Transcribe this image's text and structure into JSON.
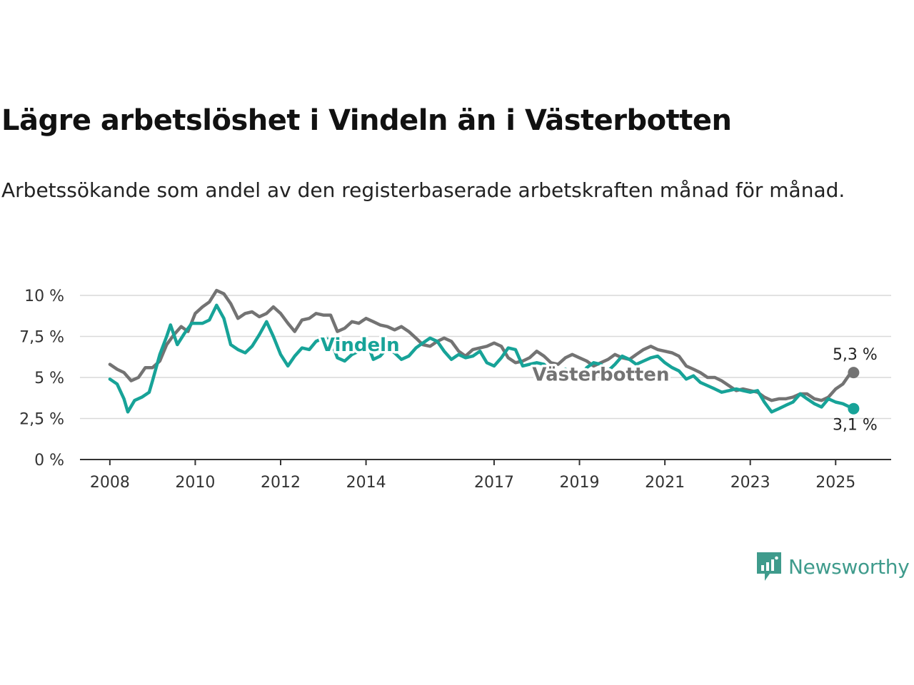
{
  "header": {
    "title": "Lägre arbetslöshet i Vindeln än i Västerbotten",
    "subtitle": "Arbetssökande som andel av den registerbaserade arbetskraften månad för månad."
  },
  "brand": {
    "name": "Newsworthy",
    "color": "#3f9b8c",
    "icon": "newsworthy-logo-icon"
  },
  "chart_data": {
    "type": "line",
    "x_unit": "year",
    "xlim": [
      2007.3,
      2026.3
    ],
    "ylim": [
      0,
      10
    ],
    "y_ticks": [
      0,
      2.5,
      5,
      7.5,
      10
    ],
    "y_tick_labels": [
      "0 %",
      "2,5 %",
      "5 %",
      "7,5 %",
      "10 %"
    ],
    "x_ticks": [
      2008,
      2010,
      2012,
      2014,
      2017,
      2019,
      2021,
      2023,
      2025
    ],
    "x_tick_labels": [
      "2008",
      "2010",
      "2012",
      "2014",
      "2017",
      "2019",
      "2021",
      "2023",
      "2025"
    ],
    "grid": true,
    "legend": "direct labels",
    "series": [
      {
        "name": "Västerbotten",
        "color": "#737373",
        "end_label": "5,3 %",
        "points": [
          [
            2008.0,
            5.8
          ],
          [
            2008.17,
            5.5
          ],
          [
            2008.33,
            5.3
          ],
          [
            2008.5,
            4.8
          ],
          [
            2008.67,
            5.0
          ],
          [
            2008.83,
            5.6
          ],
          [
            2009.0,
            5.6
          ],
          [
            2009.17,
            6.0
          ],
          [
            2009.33,
            7.0
          ],
          [
            2009.5,
            7.6
          ],
          [
            2009.67,
            8.1
          ],
          [
            2009.83,
            7.8
          ],
          [
            2010.0,
            8.9
          ],
          [
            2010.17,
            9.3
          ],
          [
            2010.33,
            9.6
          ],
          [
            2010.5,
            10.3
          ],
          [
            2010.67,
            10.1
          ],
          [
            2010.83,
            9.5
          ],
          [
            2011.0,
            8.6
          ],
          [
            2011.17,
            8.9
          ],
          [
            2011.33,
            9.0
          ],
          [
            2011.5,
            8.7
          ],
          [
            2011.67,
            8.9
          ],
          [
            2011.83,
            9.3
          ],
          [
            2012.0,
            8.9
          ],
          [
            2012.17,
            8.3
          ],
          [
            2012.33,
            7.8
          ],
          [
            2012.5,
            8.5
          ],
          [
            2012.67,
            8.6
          ],
          [
            2012.83,
            8.9
          ],
          [
            2013.0,
            8.8
          ],
          [
            2013.17,
            8.8
          ],
          [
            2013.33,
            7.8
          ],
          [
            2013.5,
            8.0
          ],
          [
            2013.67,
            8.4
          ],
          [
            2013.83,
            8.3
          ],
          [
            2014.0,
            8.6
          ],
          [
            2014.17,
            8.4
          ],
          [
            2014.33,
            8.2
          ],
          [
            2014.5,
            8.1
          ],
          [
            2014.67,
            7.9
          ],
          [
            2014.83,
            8.1
          ],
          [
            2015.0,
            7.8
          ],
          [
            2015.17,
            7.4
          ],
          [
            2015.33,
            7.0
          ],
          [
            2015.5,
            6.9
          ],
          [
            2015.67,
            7.2
          ],
          [
            2015.83,
            7.4
          ],
          [
            2016.0,
            7.2
          ],
          [
            2016.17,
            6.6
          ],
          [
            2016.33,
            6.3
          ],
          [
            2016.5,
            6.7
          ],
          [
            2016.67,
            6.8
          ],
          [
            2016.83,
            6.9
          ],
          [
            2017.0,
            7.1
          ],
          [
            2017.17,
            6.9
          ],
          [
            2017.33,
            6.2
          ],
          [
            2017.5,
            5.9
          ],
          [
            2017.67,
            6.0
          ],
          [
            2017.83,
            6.2
          ],
          [
            2018.0,
            6.6
          ],
          [
            2018.17,
            6.3
          ],
          [
            2018.33,
            5.9
          ],
          [
            2018.5,
            5.8
          ],
          [
            2018.67,
            6.2
          ],
          [
            2018.83,
            6.4
          ],
          [
            2019.0,
            6.2
          ],
          [
            2019.17,
            6.0
          ],
          [
            2019.33,
            5.7
          ],
          [
            2019.5,
            5.9
          ],
          [
            2019.67,
            6.1
          ],
          [
            2019.83,
            6.4
          ],
          [
            2020.0,
            6.2
          ],
          [
            2020.17,
            6.1
          ],
          [
            2020.33,
            6.4
          ],
          [
            2020.5,
            6.7
          ],
          [
            2020.67,
            6.9
          ],
          [
            2020.83,
            6.7
          ],
          [
            2021.0,
            6.6
          ],
          [
            2021.17,
            6.5
          ],
          [
            2021.33,
            6.3
          ],
          [
            2021.5,
            5.7
          ],
          [
            2021.67,
            5.5
          ],
          [
            2021.83,
            5.3
          ],
          [
            2022.0,
            5.0
          ],
          [
            2022.17,
            5.0
          ],
          [
            2022.33,
            4.8
          ],
          [
            2022.5,
            4.5
          ],
          [
            2022.67,
            4.2
          ],
          [
            2022.83,
            4.3
          ],
          [
            2023.0,
            4.2
          ],
          [
            2023.17,
            4.1
          ],
          [
            2023.33,
            3.8
          ],
          [
            2023.5,
            3.6
          ],
          [
            2023.67,
            3.7
          ],
          [
            2023.83,
            3.7
          ],
          [
            2024.0,
            3.8
          ],
          [
            2024.17,
            4.0
          ],
          [
            2024.33,
            4.0
          ],
          [
            2024.5,
            3.7
          ],
          [
            2024.67,
            3.6
          ],
          [
            2024.83,
            3.8
          ],
          [
            2025.0,
            4.3
          ],
          [
            2025.17,
            4.6
          ],
          [
            2025.33,
            5.2
          ],
          [
            2025.42,
            5.3
          ]
        ]
      },
      {
        "name": "Vindeln",
        "color": "#17a398",
        "end_label": "3,1 %",
        "points": [
          [
            2008.0,
            4.9
          ],
          [
            2008.17,
            4.6
          ],
          [
            2008.33,
            3.7
          ],
          [
            2008.42,
            2.9
          ],
          [
            2008.58,
            3.6
          ],
          [
            2008.75,
            3.8
          ],
          [
            2008.92,
            4.1
          ],
          [
            2009.0,
            4.8
          ],
          [
            2009.17,
            6.4
          ],
          [
            2009.33,
            7.5
          ],
          [
            2009.42,
            8.2
          ],
          [
            2009.58,
            7.0
          ],
          [
            2009.75,
            7.7
          ],
          [
            2009.92,
            8.3
          ],
          [
            2010.17,
            8.3
          ],
          [
            2010.33,
            8.5
          ],
          [
            2010.5,
            9.4
          ],
          [
            2010.67,
            8.6
          ],
          [
            2010.83,
            7.0
          ],
          [
            2011.0,
            6.7
          ],
          [
            2011.17,
            6.5
          ],
          [
            2011.33,
            6.9
          ],
          [
            2011.5,
            7.6
          ],
          [
            2011.67,
            8.4
          ],
          [
            2011.83,
            7.5
          ],
          [
            2012.0,
            6.4
          ],
          [
            2012.17,
            5.7
          ],
          [
            2012.33,
            6.3
          ],
          [
            2012.5,
            6.8
          ],
          [
            2012.67,
            6.7
          ],
          [
            2012.83,
            7.2
          ],
          [
            2013.0,
            7.4
          ],
          [
            2013.17,
            7.3
          ],
          [
            2013.33,
            6.2
          ],
          [
            2013.5,
            6.0
          ],
          [
            2013.67,
            6.4
          ],
          [
            2013.83,
            6.6
          ],
          [
            2014.0,
            7.3
          ],
          [
            2014.17,
            6.1
          ],
          [
            2014.33,
            6.3
          ],
          [
            2014.5,
            6.8
          ],
          [
            2014.67,
            6.5
          ],
          [
            2014.83,
            6.1
          ],
          [
            2015.0,
            6.3
          ],
          [
            2015.17,
            6.8
          ],
          [
            2015.33,
            7.1
          ],
          [
            2015.5,
            7.4
          ],
          [
            2015.67,
            7.2
          ],
          [
            2015.83,
            6.6
          ],
          [
            2016.0,
            6.1
          ],
          [
            2016.17,
            6.4
          ],
          [
            2016.33,
            6.2
          ],
          [
            2016.5,
            6.3
          ],
          [
            2016.67,
            6.6
          ],
          [
            2016.83,
            5.9
          ],
          [
            2017.0,
            5.7
          ],
          [
            2017.17,
            6.2
          ],
          [
            2017.33,
            6.8
          ],
          [
            2017.5,
            6.7
          ],
          [
            2017.67,
            5.7
          ],
          [
            2017.83,
            5.8
          ],
          [
            2018.0,
            5.9
          ],
          [
            2018.17,
            5.8
          ],
          [
            2018.33,
            5.4
          ],
          [
            2018.5,
            5.3
          ],
          [
            2018.67,
            5.5
          ],
          [
            2018.83,
            5.2
          ],
          [
            2019.0,
            5.0
          ],
          [
            2019.17,
            5.6
          ],
          [
            2019.33,
            5.9
          ],
          [
            2019.5,
            5.8
          ],
          [
            2019.67,
            5.4
          ],
          [
            2019.83,
            5.8
          ],
          [
            2020.0,
            6.3
          ],
          [
            2020.17,
            6.1
          ],
          [
            2020.33,
            5.8
          ],
          [
            2020.5,
            6.0
          ],
          [
            2020.67,
            6.2
          ],
          [
            2020.83,
            6.3
          ],
          [
            2021.0,
            5.9
          ],
          [
            2021.17,
            5.6
          ],
          [
            2021.33,
            5.4
          ],
          [
            2021.5,
            4.9
          ],
          [
            2021.67,
            5.1
          ],
          [
            2021.83,
            4.7
          ],
          [
            2022.0,
            4.5
          ],
          [
            2022.17,
            4.3
          ],
          [
            2022.33,
            4.1
          ],
          [
            2022.5,
            4.2
          ],
          [
            2022.67,
            4.3
          ],
          [
            2022.83,
            4.2
          ],
          [
            2023.0,
            4.1
          ],
          [
            2023.17,
            4.2
          ],
          [
            2023.33,
            3.5
          ],
          [
            2023.5,
            2.9
          ],
          [
            2023.67,
            3.1
          ],
          [
            2023.83,
            3.3
          ],
          [
            2024.0,
            3.5
          ],
          [
            2024.17,
            4.0
          ],
          [
            2024.33,
            3.7
          ],
          [
            2024.5,
            3.4
          ],
          [
            2024.67,
            3.2
          ],
          [
            2024.83,
            3.7
          ],
          [
            2025.0,
            3.5
          ],
          [
            2025.17,
            3.4
          ],
          [
            2025.33,
            3.2
          ],
          [
            2025.42,
            3.1
          ]
        ]
      }
    ]
  }
}
